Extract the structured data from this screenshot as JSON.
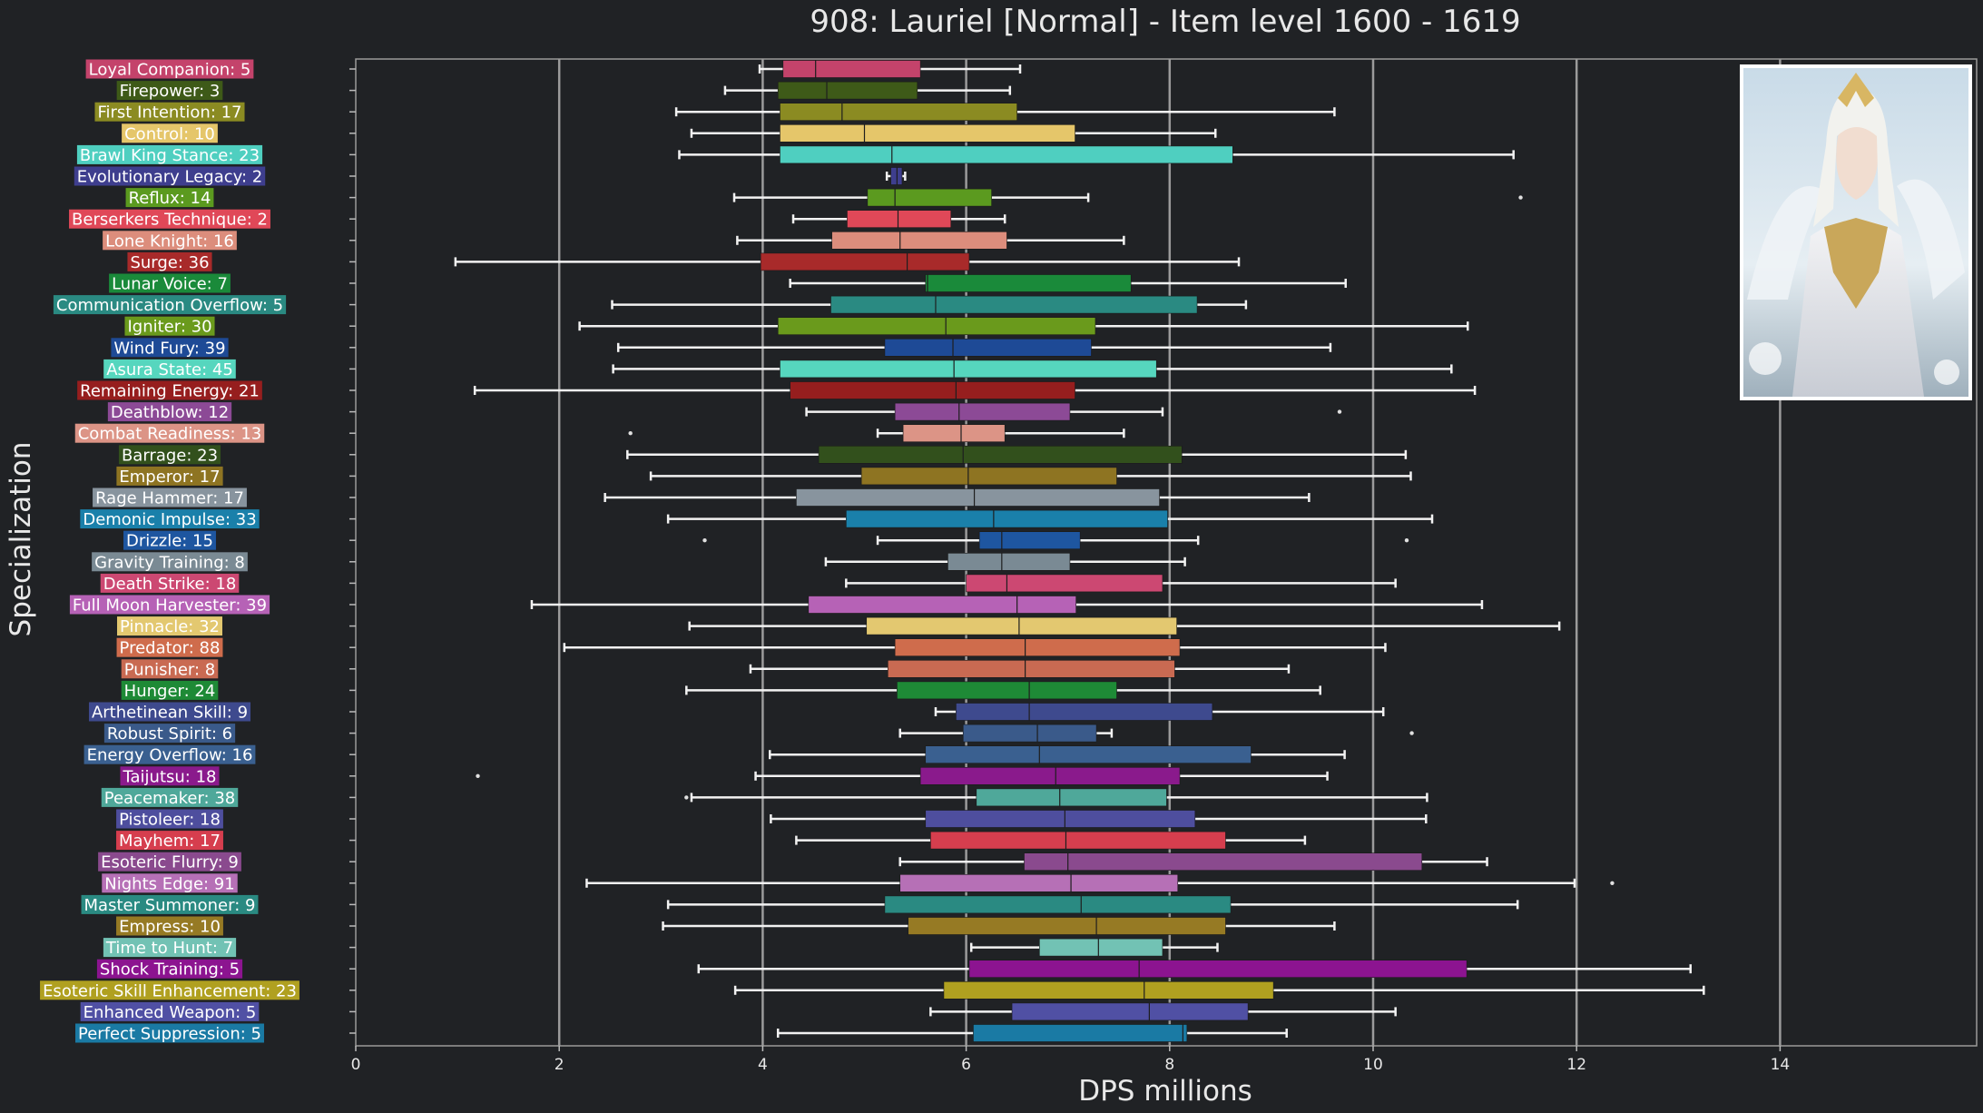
{
  "chart_data": {
    "type": "box",
    "orientation": "horizontal",
    "title": "908: Lauriel [Normal] - Item level 1600 - 1619",
    "xlabel": "DPS millions",
    "ylabel": "Specialization",
    "xlim": [
      0,
      16
    ],
    "xticks": [
      0,
      2,
      4,
      6,
      8,
      10,
      12,
      14
    ],
    "grid": "vertical",
    "series": [
      {
        "label": "Loyal Companion: 5",
        "color": "#c4436b",
        "min": 3.97,
        "q1": 4.2,
        "median": 4.52,
        "q3": 5.55,
        "max": 6.53,
        "outliers": []
      },
      {
        "label": "Firepower: 3",
        "color": "#3e5a18",
        "min": 3.63,
        "q1": 4.15,
        "median": 4.63,
        "q3": 5.52,
        "max": 6.43,
        "outliers": []
      },
      {
        "label": "First Intention: 17",
        "color": "#8b8b22",
        "min": 3.15,
        "q1": 4.17,
        "median": 4.78,
        "q3": 6.5,
        "max": 9.62,
        "outliers": []
      },
      {
        "label": "Control: 10",
        "color": "#e5c66a",
        "min": 3.3,
        "q1": 4.17,
        "median": 5.0,
        "q3": 7.07,
        "max": 8.45,
        "outliers": []
      },
      {
        "label": "Brawl King Stance: 23",
        "color": "#4fcfc0",
        "min": 3.18,
        "q1": 4.17,
        "median": 5.27,
        "q3": 8.62,
        "max": 11.38,
        "outliers": []
      },
      {
        "label": "Evolutionary Legacy: 2",
        "color": "#3e3e8e",
        "min": 5.22,
        "q1": 5.26,
        "median": 5.32,
        "q3": 5.37,
        "max": 5.4,
        "outliers": []
      },
      {
        "label": "Reflux: 14",
        "color": "#5b9a1f",
        "min": 3.72,
        "q1": 5.03,
        "median": 5.3,
        "q3": 6.25,
        "max": 7.2,
        "outliers": [
          11.45
        ]
      },
      {
        "label": "Berserkers Technique: 2",
        "color": "#e04858",
        "min": 4.3,
        "q1": 4.83,
        "median": 5.33,
        "q3": 5.85,
        "max": 6.38,
        "outliers": []
      },
      {
        "label": "Lone Knight: 16",
        "color": "#dc8d7c",
        "min": 3.75,
        "q1": 4.68,
        "median": 5.35,
        "q3": 6.4,
        "max": 7.55,
        "outliers": []
      },
      {
        "label": "Surge: 36",
        "color": "#a82a2a",
        "min": 0.98,
        "q1": 3.98,
        "median": 5.42,
        "q3": 6.03,
        "max": 8.68,
        "outliers": []
      },
      {
        "label": "Lunar Voice: 7",
        "color": "#1a8a3a",
        "min": 4.27,
        "q1": 5.6,
        "median": 5.62,
        "q3": 7.62,
        "max": 9.73,
        "outliers": []
      },
      {
        "label": "Communication Overflow: 5",
        "color": "#2a8a82",
        "min": 2.52,
        "q1": 4.67,
        "median": 5.7,
        "q3": 8.27,
        "max": 8.75,
        "outliers": []
      },
      {
        "label": "Igniter: 30",
        "color": "#6a9a1c",
        "min": 2.2,
        "q1": 4.15,
        "median": 5.8,
        "q3": 7.27,
        "max": 10.93,
        "outliers": []
      },
      {
        "label": "Wind Fury: 39",
        "color": "#1e4a96",
        "min": 2.58,
        "q1": 5.2,
        "median": 5.87,
        "q3": 7.23,
        "max": 9.58,
        "outliers": []
      },
      {
        "label": "Asura State: 45",
        "color": "#56d6be",
        "min": 2.53,
        "q1": 4.17,
        "median": 5.88,
        "q3": 7.87,
        "max": 10.77,
        "outliers": []
      },
      {
        "label": "Remaining Energy: 21",
        "color": "#961e1e",
        "min": 1.17,
        "q1": 4.27,
        "median": 5.9,
        "q3": 7.07,
        "max": 11.0,
        "outliers": []
      },
      {
        "label": "Deathblow: 12",
        "color": "#8c4a96",
        "min": 4.43,
        "q1": 5.3,
        "median": 5.93,
        "q3": 7.02,
        "max": 7.93,
        "outliers": [
          9.67
        ]
      },
      {
        "label": "Combat Readiness: 13",
        "color": "#dc9486",
        "min": 5.13,
        "q1": 5.38,
        "median": 5.95,
        "q3": 6.38,
        "max": 7.55,
        "outliers": [
          2.7
        ]
      },
      {
        "label": "Barrage: 23",
        "color": "#32501c",
        "min": 2.67,
        "q1": 4.55,
        "median": 5.97,
        "q3": 8.12,
        "max": 10.32,
        "outliers": []
      },
      {
        "label": "Emperor: 17",
        "color": "#8e7422",
        "min": 2.9,
        "q1": 4.97,
        "median": 6.02,
        "q3": 7.48,
        "max": 10.37,
        "outliers": []
      },
      {
        "label": "Rage Hammer: 17",
        "color": "#88949e",
        "min": 2.45,
        "q1": 4.33,
        "median": 6.08,
        "q3": 7.9,
        "max": 9.37,
        "outliers": []
      },
      {
        "label": "Demonic Impulse: 33",
        "color": "#1a80aa",
        "min": 3.07,
        "q1": 4.82,
        "median": 6.27,
        "q3": 7.98,
        "max": 10.58,
        "outliers": []
      },
      {
        "label": "Drizzle: 15",
        "color": "#1e56a0",
        "min": 5.13,
        "q1": 6.13,
        "median": 6.35,
        "q3": 7.12,
        "max": 8.28,
        "outliers": [
          3.43,
          10.33
        ]
      },
      {
        "label": "Gravity Training: 8",
        "color": "#7a8a94",
        "min": 4.62,
        "q1": 5.82,
        "median": 6.35,
        "q3": 7.02,
        "max": 8.15,
        "outliers": []
      },
      {
        "label": "Death Strike: 18",
        "color": "#cc4872",
        "min": 4.82,
        "q1": 6.0,
        "median": 6.4,
        "q3": 7.93,
        "max": 10.22,
        "outliers": []
      },
      {
        "label": "Full Moon Harvester: 39",
        "color": "#b662b6",
        "min": 1.73,
        "q1": 4.45,
        "median": 6.5,
        "q3": 7.08,
        "max": 11.07,
        "outliers": []
      },
      {
        "label": "Pinnacle: 32",
        "color": "#e3c870",
        "min": 3.28,
        "q1": 5.02,
        "median": 6.52,
        "q3": 8.07,
        "max": 11.83,
        "outliers": []
      },
      {
        "label": "Predator: 88",
        "color": "#cf6c4c",
        "min": 2.05,
        "q1": 5.3,
        "median": 6.58,
        "q3": 8.1,
        "max": 10.12,
        "outliers": []
      },
      {
        "label": "Punisher: 8",
        "color": "#c96a52",
        "min": 3.88,
        "q1": 5.23,
        "median": 6.58,
        "q3": 8.05,
        "max": 9.17,
        "outliers": []
      },
      {
        "label": "Hunger: 24",
        "color": "#1e8a36",
        "min": 3.25,
        "q1": 5.32,
        "median": 6.62,
        "q3": 7.48,
        "max": 9.48,
        "outliers": []
      },
      {
        "label": "Arthetinean Skill: 9",
        "color": "#3e4a8e",
        "min": 5.7,
        "q1": 5.9,
        "median": 6.62,
        "q3": 8.42,
        "max": 10.1,
        "outliers": []
      },
      {
        "label": "Robust Spirit: 6",
        "color": "#3a5a8a",
        "min": 5.35,
        "q1": 5.97,
        "median": 6.7,
        "q3": 7.28,
        "max": 7.43,
        "outliers": [
          10.38
        ]
      },
      {
        "label": "Energy Overflow: 16",
        "color": "#3a6090",
        "min": 4.07,
        "q1": 5.6,
        "median": 6.72,
        "q3": 8.8,
        "max": 9.72,
        "outliers": []
      },
      {
        "label": "Taijutsu: 18",
        "color": "#8a1a8c",
        "min": 3.93,
        "q1": 5.55,
        "median": 6.88,
        "q3": 8.1,
        "max": 9.55,
        "outliers": [
          1.2
        ]
      },
      {
        "label": "Peacemaker: 38",
        "color": "#4fa89a",
        "min": 3.3,
        "q1": 6.1,
        "median": 6.92,
        "q3": 7.97,
        "max": 10.53,
        "outliers": [
          3.25
        ]
      },
      {
        "label": "Pistoleer: 18",
        "color": "#4e4e9e",
        "min": 4.08,
        "q1": 5.6,
        "median": 6.97,
        "q3": 8.25,
        "max": 10.52,
        "outliers": []
      },
      {
        "label": "Mayhem: 17",
        "color": "#d63e4e",
        "min": 4.33,
        "q1": 5.65,
        "median": 6.98,
        "q3": 8.55,
        "max": 9.33,
        "outliers": []
      },
      {
        "label": "Esoteric Flurry: 9",
        "color": "#8a4a8e",
        "min": 5.35,
        "q1": 6.57,
        "median": 7.0,
        "q3": 10.48,
        "max": 11.12,
        "outliers": []
      },
      {
        "label": "Nights Edge: 91",
        "color": "#b670b6",
        "min": 2.27,
        "q1": 5.35,
        "median": 7.03,
        "q3": 8.08,
        "max": 11.98,
        "outliers": [
          12.35
        ]
      },
      {
        "label": "Master Summoner: 9",
        "color": "#2a8a82",
        "min": 3.07,
        "q1": 5.2,
        "median": 7.13,
        "q3": 8.6,
        "max": 11.42,
        "outliers": []
      },
      {
        "label": "Empress: 10",
        "color": "#967a24",
        "min": 3.02,
        "q1": 5.43,
        "median": 7.28,
        "q3": 8.55,
        "max": 9.62,
        "outliers": []
      },
      {
        "label": "Time to Hunt: 7",
        "color": "#72c2b4",
        "min": 6.05,
        "q1": 6.72,
        "median": 7.3,
        "q3": 7.93,
        "max": 8.47,
        "outliers": []
      },
      {
        "label": "Shock Training: 5",
        "color": "#8c1490",
        "min": 3.37,
        "q1": 6.03,
        "median": 7.7,
        "q3": 10.92,
        "max": 13.12,
        "outliers": []
      },
      {
        "label": "Esoteric Skill Enhancement: 23",
        "color": "#b0a020",
        "min": 3.73,
        "q1": 5.78,
        "median": 7.75,
        "q3": 9.02,
        "max": 13.25,
        "outliers": []
      },
      {
        "label": "Enhanced Weapon: 5",
        "color": "#5050a4",
        "min": 5.65,
        "q1": 6.45,
        "median": 7.8,
        "q3": 8.77,
        "max": 10.22,
        "outliers": []
      },
      {
        "label": "Perfect Suppression: 5",
        "color": "#1a7aa4",
        "min": 4.15,
        "q1": 6.07,
        "median": 8.13,
        "q3": 8.17,
        "max": 9.15,
        "outliers": []
      }
    ]
  }
}
